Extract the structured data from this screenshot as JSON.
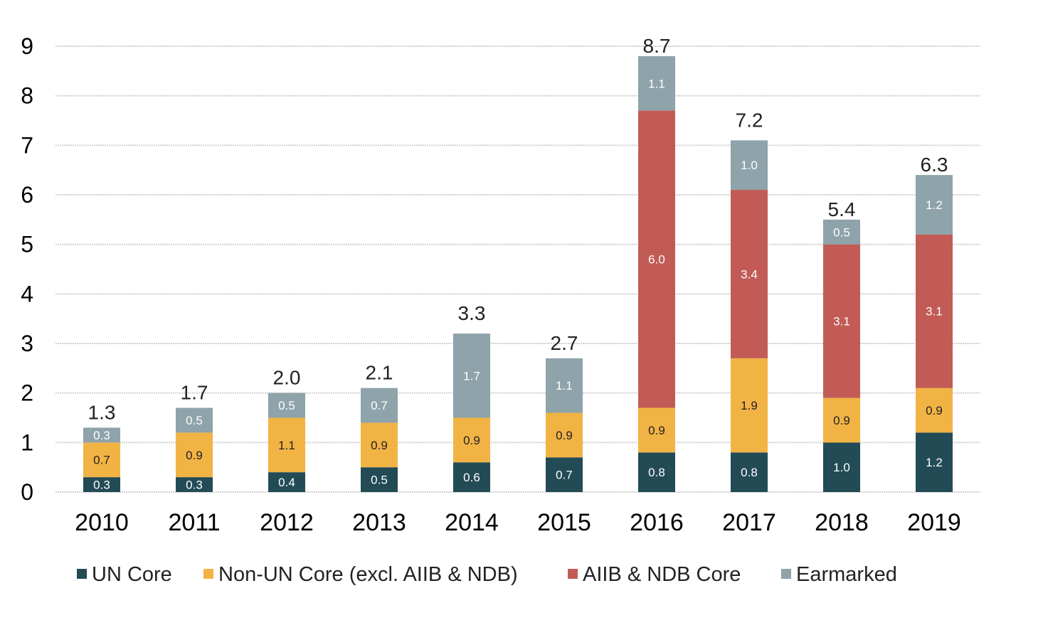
{
  "chart_data": {
    "type": "bar",
    "stacked": true,
    "categories": [
      "2010",
      "2011",
      "2012",
      "2013",
      "2014",
      "2015",
      "2016",
      "2017",
      "2018",
      "2019"
    ],
    "series": [
      {
        "name": "UN Core",
        "color": "#234b56",
        "values": [
          0.3,
          0.3,
          0.4,
          0.5,
          0.6,
          0.7,
          0.8,
          0.8,
          1.0,
          1.2
        ],
        "labels": [
          "0.3",
          "0.3",
          "0.4",
          "0.5",
          "0.6",
          "0.7",
          "0.8",
          "0.8",
          "1.0",
          "1.2"
        ]
      },
      {
        "name": "Non-UN Core (excl. AIIB & NDB)",
        "color": "#f2b345",
        "values": [
          0.7,
          0.9,
          1.1,
          0.9,
          0.9,
          0.9,
          0.9,
          1.9,
          0.9,
          0.9
        ],
        "labels": [
          "0.7",
          "0.9",
          "1.1",
          "0.9",
          "0.9",
          "0.9",
          "0.9",
          "1.9",
          "0.9",
          "0.9"
        ]
      },
      {
        "name": "AIIB & NDB Core",
        "color": "#c25b55",
        "values": [
          0,
          0,
          0,
          0,
          0,
          0,
          6.0,
          3.4,
          3.1,
          3.1
        ],
        "labels": [
          "",
          "",
          "",
          "",
          "",
          "",
          "6.0",
          "3.4",
          "3.1",
          "3.1"
        ]
      },
      {
        "name": "Earmarked",
        "color": "#8ea3aa",
        "values": [
          0.3,
          0.5,
          0.5,
          0.7,
          1.7,
          1.1,
          1.1,
          1.0,
          0.5,
          1.2
        ],
        "labels": [
          "0.3",
          "0.5",
          "0.5",
          "0.7",
          "1.7",
          "1.1",
          "1.1",
          "1.0",
          "0.5",
          "1.2"
        ]
      }
    ],
    "totals": [
      1.3,
      1.7,
      2.0,
      2.1,
      3.3,
      2.7,
      8.7,
      7.2,
      5.4,
      6.3
    ],
    "total_labels": [
      "1.3",
      "1.7",
      "2.0",
      "2.1",
      "3.3",
      "2.7",
      "8.7",
      "7.2",
      "5.4",
      "6.3"
    ],
    "ylim": [
      0,
      9
    ],
    "yticks": [
      "0",
      "1",
      "2",
      "3",
      "4",
      "5",
      "6",
      "7",
      "8",
      "9"
    ],
    "grid": true,
    "legend_position": "bottom",
    "title": "",
    "xlabel": "",
    "ylabel": ""
  },
  "colors": {
    "grid": "#d2d2d2",
    "label_light": "#ffffff",
    "label_dark": "#222222"
  }
}
